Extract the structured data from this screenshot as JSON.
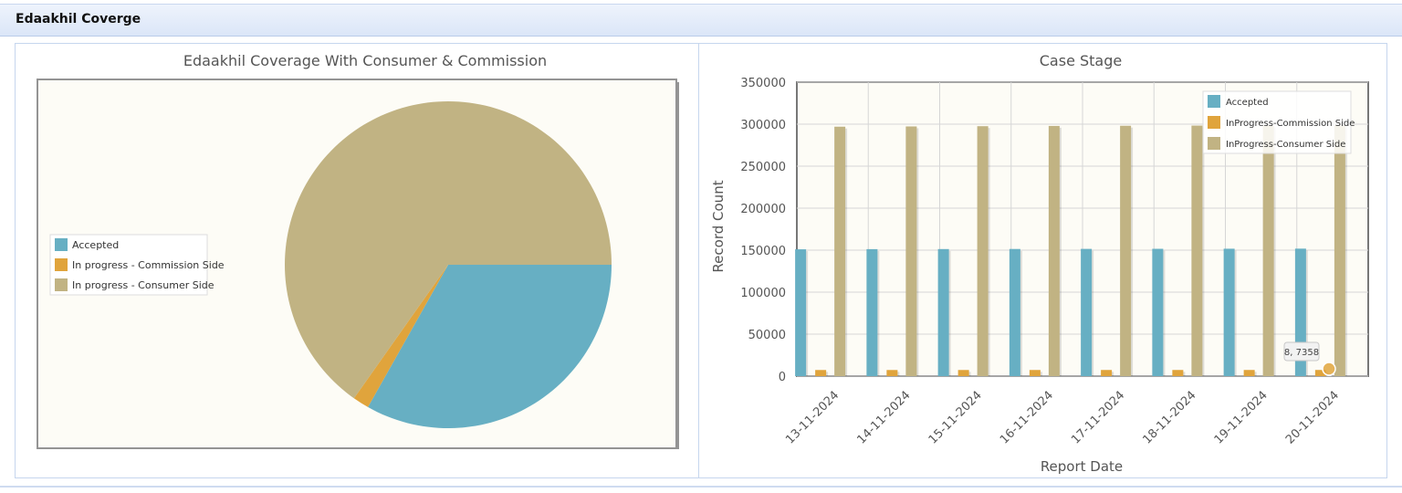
{
  "header": {
    "title": "Edaakhil Coverge"
  },
  "chart_data": [
    {
      "type": "pie",
      "title": "Edaakhil Coverage With Consumer & Commission",
      "legend_position": "left",
      "slices": [
        {
          "label": "Accepted",
          "value": 151800,
          "color": "#67afc3"
        },
        {
          "label": "In progress - Commission Side",
          "value": 7358,
          "color": "#e0a43c"
        },
        {
          "label": "In progress - Consumer Side",
          "value": 298500,
          "color": "#c1b383"
        }
      ]
    },
    {
      "type": "bar",
      "title": "Case Stage",
      "xlabel": "Report Date",
      "ylabel": "Record Count",
      "ylim": [
        0,
        350000
      ],
      "yticks": [
        0,
        50000,
        100000,
        150000,
        200000,
        250000,
        300000,
        350000
      ],
      "grid": true,
      "legend_position": "top-right",
      "categories": [
        "13-11-2024",
        "14-11-2024",
        "15-11-2024",
        "16-11-2024",
        "17-11-2024",
        "18-11-2024",
        "19-11-2024",
        "20-11-2024"
      ],
      "series": [
        {
          "name": "Accepted",
          "color": "#67afc3",
          "values": [
            151000,
            151200,
            151300,
            151400,
            151500,
            151600,
            151700,
            151800
          ]
        },
        {
          "name": "InProgress-Commission Side",
          "color": "#e0a43c",
          "values": [
            7300,
            7310,
            7320,
            7330,
            7340,
            7345,
            7350,
            7358
          ]
        },
        {
          "name": "InProgress-Consumer Side",
          "color": "#c1b383",
          "values": [
            297000,
            297300,
            297600,
            297900,
            298100,
            298300,
            298400,
            298500
          ]
        }
      ],
      "tooltip": {
        "text": "8, 7358"
      }
    }
  ]
}
